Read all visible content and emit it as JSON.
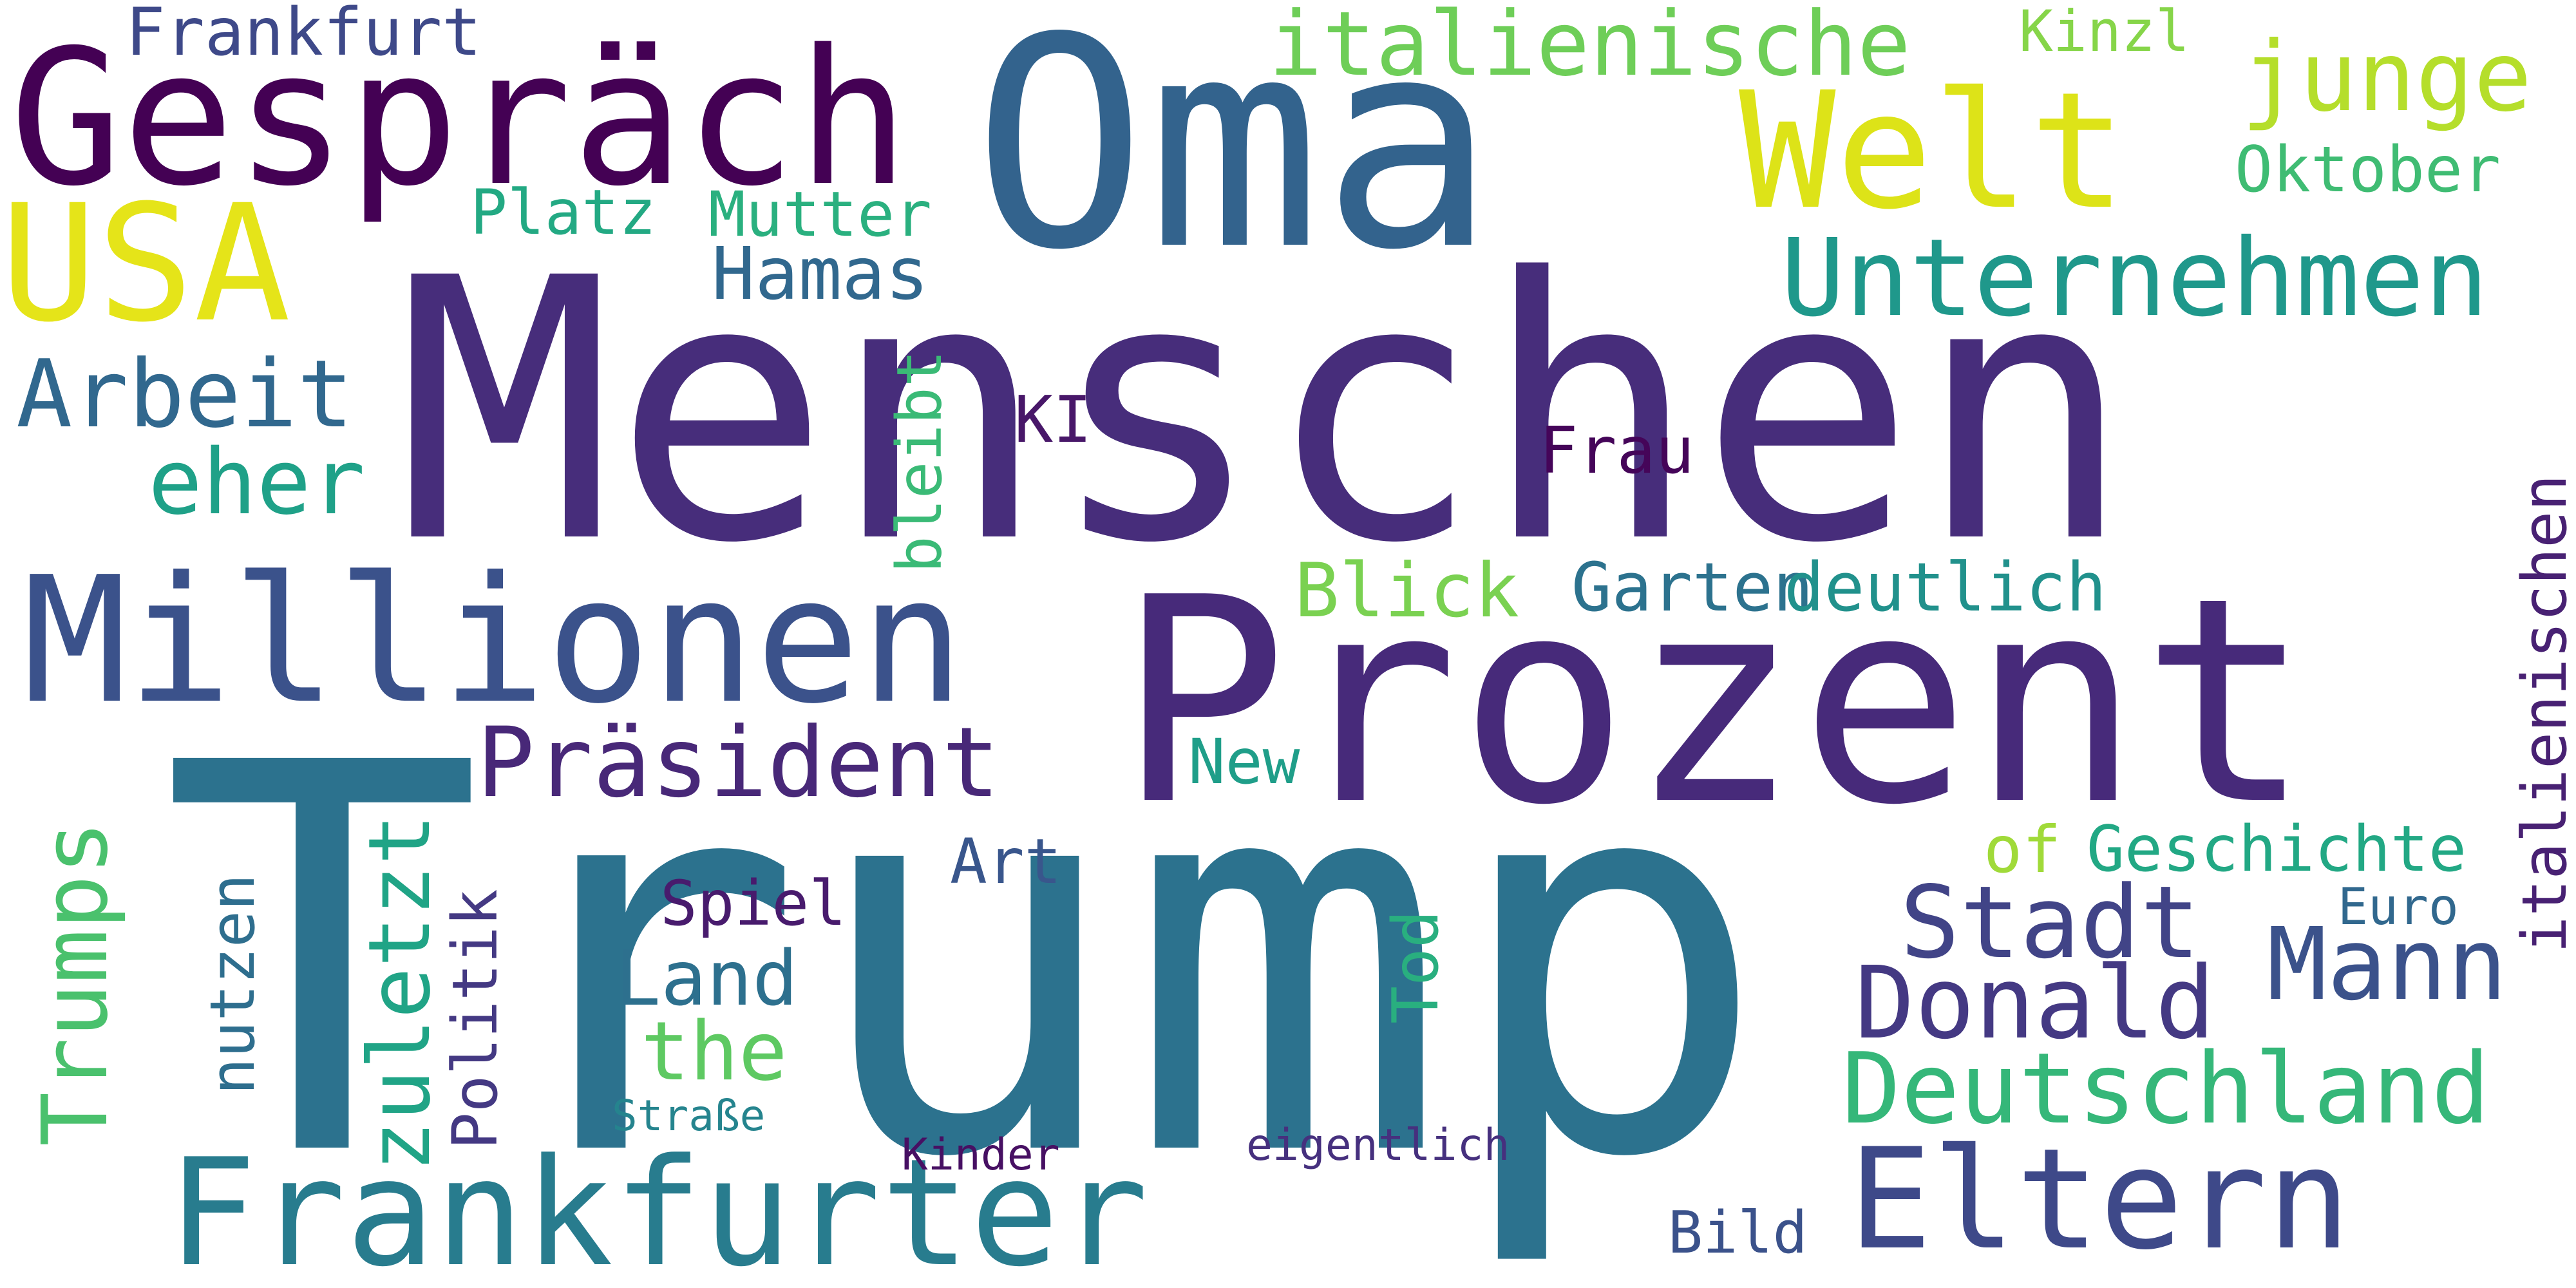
{
  "words": [
    {
      "id": "trump",
      "text": "Trump",
      "color": "#2c728e"
    },
    {
      "id": "menschen",
      "text": "Menschen",
      "color": "#472d7b"
    },
    {
      "id": "prozent",
      "text": "Prozent",
      "color": "#472a7a"
    },
    {
      "id": "oma",
      "text": "Oma",
      "color": "#33638d"
    },
    {
      "id": "gespraech",
      "text": "Gespräch",
      "color": "#440154"
    },
    {
      "id": "millionen",
      "text": "Millionen",
      "color": "#3b528b"
    },
    {
      "id": "frankfurter",
      "text": "Frankfurter",
      "color": "#287c8e"
    },
    {
      "id": "welt",
      "text": "Welt",
      "color": "#dde318"
    },
    {
      "id": "usa",
      "text": "USA",
      "color": "#e5e419"
    },
    {
      "id": "unternehmen",
      "text": "Unternehmen",
      "color": "#1f988b"
    },
    {
      "id": "eltern",
      "text": "Eltern",
      "color": "#3e4989"
    },
    {
      "id": "deutschland",
      "text": "Deutschland",
      "color": "#35b779"
    },
    {
      "id": "praesident",
      "text": "Präsident",
      "color": "#482878"
    },
    {
      "id": "donald",
      "text": "Donald",
      "color": "#443983"
    },
    {
      "id": "stadt",
      "text": "Stadt",
      "color": "#414487"
    },
    {
      "id": "mann",
      "text": "Mann",
      "color": "#3b528b"
    },
    {
      "id": "italienische",
      "text": "italienische",
      "color": "#6ece58"
    },
    {
      "id": "italienischen",
      "text": "italienischen",
      "color": "#482173"
    },
    {
      "id": "junge",
      "text": "junge",
      "color": "#b5de2b"
    },
    {
      "id": "arbeit",
      "text": "Arbeit",
      "color": "#31688e"
    },
    {
      "id": "trumps",
      "text": "Trumps",
      "color": "#4ac16d"
    },
    {
      "id": "eher",
      "text": "eher",
      "color": "#1fa188"
    },
    {
      "id": "zuletzt",
      "text": "zuletzt",
      "color": "#20a486"
    },
    {
      "id": "hamas",
      "text": "Hamas",
      "color": "#31688e"
    },
    {
      "id": "garten",
      "text": "Garten",
      "color": "#2c728e"
    },
    {
      "id": "deutlich",
      "text": "deutlich",
      "color": "#21918c"
    },
    {
      "id": "blick",
      "text": "Blick",
      "color": "#7ad151"
    },
    {
      "id": "the",
      "text": "the",
      "color": "#5ec962"
    },
    {
      "id": "land",
      "text": "Land",
      "color": "#2d708e"
    },
    {
      "id": "geschichte",
      "text": "Geschichte",
      "color": "#22a884"
    },
    {
      "id": "oktober",
      "text": "Oktober",
      "color": "#3fbc73"
    },
    {
      "id": "frankfurt",
      "text": "Frankfurt",
      "color": "#3e4989"
    },
    {
      "id": "mutter",
      "text": "Mutter",
      "color": "#2ab07f"
    },
    {
      "id": "platz",
      "text": "Platz",
      "color": "#23a983"
    },
    {
      "id": "politik",
      "text": "Politik",
      "color": "#443983"
    },
    {
      "id": "nutzen",
      "text": "nutzen",
      "color": "#2e6e8e"
    },
    {
      "id": "spiel",
      "text": "Spiel",
      "color": "#481b6d"
    },
    {
      "id": "new",
      "text": "New",
      "color": "#1f9e89"
    },
    {
      "id": "art",
      "text": "Art",
      "color": "#39568c"
    },
    {
      "id": "tod",
      "text": "Tod",
      "color": "#29af7f"
    },
    {
      "id": "bleibt",
      "text": "bleibt",
      "color": "#3aba76"
    },
    {
      "id": "frau",
      "text": "Frau",
      "color": "#450559"
    },
    {
      "id": "ki",
      "text": "KI",
      "color": "#481769"
    },
    {
      "id": "euro",
      "text": "Euro",
      "color": "#31688e"
    },
    {
      "id": "of",
      "text": "of",
      "color": "#a0da39"
    },
    {
      "id": "kinzl",
      "text": "Kinzl",
      "color": "#86d549"
    },
    {
      "id": "strasse",
      "text": "Straße",
      "color": "#25848e"
    },
    {
      "id": "kinder",
      "text": "Kinder",
      "color": "#471063"
    },
    {
      "id": "eigentlich",
      "text": "eigentlich",
      "color": "#46307e"
    },
    {
      "id": "bild",
      "text": "Bild",
      "color": "#3b528b"
    }
  ]
}
